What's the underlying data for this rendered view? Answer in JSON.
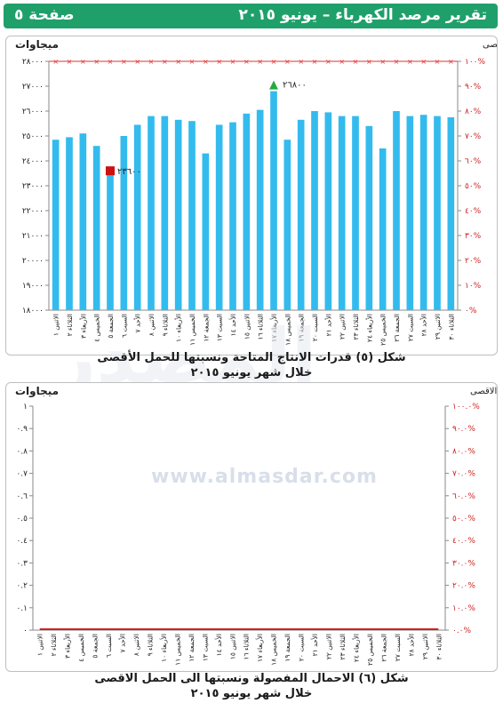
{
  "header": {
    "title": "تقرير مرصد الكهرباء – يونيو ٢٠١٥",
    "page": "صفحة ٥"
  },
  "watermark": {
    "logo_text": "المصدر",
    "url": "www.almasdar.com"
  },
  "colors": {
    "header_green": "#1fa06a",
    "bar_blue": "#33bbee",
    "max_marker": "#22aa44",
    "min_marker": "#cc1111",
    "percent_axis": "#cc2222",
    "ceiling_line": "#dd3333"
  },
  "chart1": {
    "caption_line1": "شكل (٥) قدرات الانتاج المتاحة  ونسبتها للحمل الأقصى",
    "caption_line2": "خلال شهر يونيو ٢٠١٥"
  },
  "chart2": {
    "caption_line1": "شكل (٦) الاحمال المفصولة ونسبتها الى الحمل الاقصى",
    "caption_line2": "خلال شهر يونيو ٢٠١٥"
  },
  "chart_data": [
    {
      "type": "bar",
      "ylabel": "ميجاوات",
      "y2label": "النسبة للحمل الاقصى",
      "ylim": [
        18000,
        28000
      ],
      "yticks": [
        "١٨٠٠٠",
        "١٩٠٠٠",
        "٢٠٠٠٠",
        "٢١٠٠٠",
        "٢٢٠٠٠",
        "٢٣٠٠٠",
        "٢٤٠٠٠",
        "٢٥٠٠٠",
        "٢٦٠٠٠",
        "٢٧٠٠٠",
        "٢٨٠٠٠"
      ],
      "y2ticks": [
        "٠%",
        "١٠%",
        "٢٠%",
        "٣٠%",
        "٤٠%",
        "٥٠%",
        "٦٠%",
        "٧٠%",
        "٨٠%",
        "٩٠%",
        "١٠٠%"
      ],
      "categories": [
        "الاثنين ١",
        "الثلاثاء ٢",
        "الأربعاء ٣",
        "الخميس ٤",
        "الجمعة ٥",
        "السبت ٦",
        "الأحد ٧",
        "الاثنين ٨",
        "الثلاثاء ٩",
        "الأربعاء ١٠",
        "الخميس ١١",
        "الجمعة ١٢",
        "السبت ١٣",
        "الأحد ١٤",
        "الاثنين ١٥",
        "الثلاثاء ١٦",
        "الأربعاء ١٧",
        "الخميس ١٨",
        "الجمعة ١٩",
        "السبت ٢٠",
        "الأحد ٢١",
        "الاثنين ٢٢",
        "الثلاثاء ٢٣",
        "الأربعاء ٢٤",
        "الخميس ٢٥",
        "الجمعة ٢٦",
        "السبت ٢٧",
        "الأحد ٢٨",
        "الاثنين ٢٩",
        "الثلاثاء ٣٠"
      ],
      "series": [
        {
          "values": [
            24850,
            24950,
            25100,
            24600,
            23600,
            25000,
            25450,
            25800,
            25800,
            25650,
            25600,
            24300,
            25450,
            25550,
            25900,
            26050,
            26800,
            24850,
            25650,
            26000,
            25950,
            25800,
            25800,
            25400,
            24500,
            26000,
            25800,
            25850,
            25800,
            25750
          ]
        }
      ],
      "percent_ceiling": "١٠٠%",
      "annotations": [
        {
          "label": "٢٦٨٠٠",
          "value": 26800,
          "category": "الأربعاء ١٧",
          "kind": "max"
        },
        {
          "label": "٢٣٦٠٠",
          "value": 23600,
          "category": "الجمعة ٥",
          "kind": "min"
        }
      ]
    },
    {
      "type": "line",
      "ylabel": "ميجاوات",
      "y2label": "النسبة للحمل الاقصى",
      "ylim": [
        0,
        1
      ],
      "yticks": [
        "٠",
        "٠.١",
        "٠.٢",
        "٠.٣",
        "٠.٤",
        "٠.٥",
        "٠.٦",
        "٠.٧",
        "٠.٨",
        "٠.٩",
        "١"
      ],
      "y2ticks": [
        "٠.٠%",
        "١٠.٠%",
        "٢٠.٠%",
        "٣٠.٠%",
        "٤٠.٠%",
        "٥٠.٠%",
        "٦٠.٠%",
        "٧٠.٠%",
        "٨٠.٠%",
        "٩٠.٠%",
        "١٠٠.٠%"
      ],
      "categories": [
        "الاثنين ١",
        "الثلاثاء ٢",
        "الأربعاء ٣",
        "الخميس ٤",
        "الجمعة ٥",
        "السبت ٦",
        "الأحد ٧",
        "الاثنين ٨",
        "الثلاثاء ٩",
        "الأربعاء ١٠",
        "الخميس ١١",
        "الجمعة ١٢",
        "السبت ١٣",
        "الأحد ١٤",
        "الاثنين ١٥",
        "الثلاثاء ١٦",
        "الأربعاء ١٧",
        "الخميس ١٨",
        "الجمعة ١٩",
        "السبت ٢٠",
        "الأحد ٢١",
        "الاثنين ٢٢",
        "الثلاثاء ٢٣",
        "الأربعاء ٢٤",
        "الخميس ٢٥",
        "الجمعة ٢٦",
        "السبت ٢٧",
        "الأحد ٢٨",
        "الاثنين ٢٩",
        "الثلاثاء ٣٠"
      ],
      "series": [
        {
          "values": [
            0,
            0,
            0,
            0,
            0,
            0,
            0,
            0,
            0,
            0,
            0,
            0,
            0,
            0,
            0,
            0,
            0,
            0,
            0,
            0,
            0,
            0,
            0,
            0,
            0,
            0,
            0,
            0,
            0,
            0
          ]
        }
      ]
    }
  ]
}
